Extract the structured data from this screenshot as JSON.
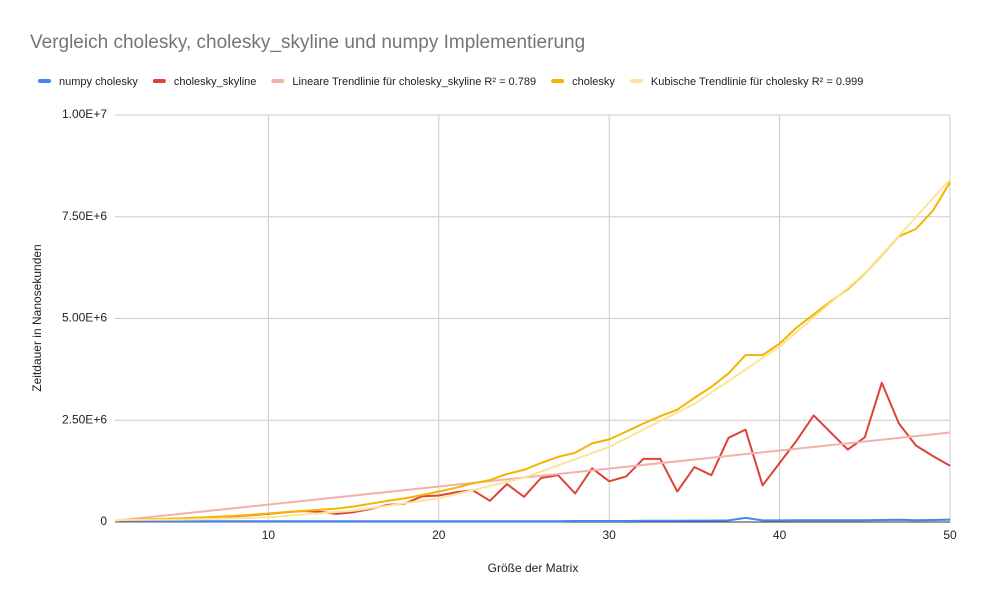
{
  "chart_data": {
    "type": "line",
    "title": "Vergleich cholesky, cholesky_skyline und numpy Implementierung",
    "x_label": "Größe der Matrix",
    "y_label": "Zeitdauer in Nanosekunden",
    "xlim": [
      1,
      50
    ],
    "xticks": [
      10,
      20,
      30,
      40,
      50
    ],
    "ylim": [
      0,
      10000000
    ],
    "yticks": [
      {
        "value": 0,
        "label": "0"
      },
      {
        "value": 2500000,
        "label": "2.50E+6"
      },
      {
        "value": 5000000,
        "label": "5.00E+6"
      },
      {
        "value": 7500000,
        "label": "7.50E+6"
      },
      {
        "value": 10000000,
        "label": "1.00E+7"
      }
    ],
    "grid": true,
    "legend": "top",
    "series": [
      {
        "name": "numpy cholesky",
        "color": "#4285f4",
        "x": [
          1,
          2,
          3,
          4,
          5,
          6,
          7,
          8,
          9,
          10,
          11,
          12,
          13,
          14,
          15,
          16,
          17,
          18,
          19,
          20,
          21,
          22,
          23,
          24,
          25,
          26,
          27,
          28,
          29,
          30,
          31,
          32,
          33,
          34,
          35,
          36,
          37,
          38,
          39,
          40,
          41,
          42,
          43,
          44,
          45,
          46,
          47,
          48,
          49,
          50
        ],
        "values": [
          20000,
          20000,
          20000,
          20000,
          20000,
          20000,
          20000,
          20000,
          20000,
          20000,
          20000,
          20000,
          20000,
          20000,
          20000,
          20000,
          20000,
          20000,
          20000,
          20000,
          20000,
          20000,
          20000,
          20000,
          20000,
          20000,
          20000,
          25000,
          25000,
          25000,
          25000,
          30000,
          30000,
          30000,
          35000,
          35000,
          40000,
          100000,
          40000,
          40000,
          45000,
          45000,
          45000,
          45000,
          45000,
          50000,
          55000,
          45000,
          50000,
          60000
        ]
      },
      {
        "name": "cholesky_skyline",
        "color": "#db4437",
        "x": [
          1,
          2,
          3,
          4,
          5,
          6,
          7,
          8,
          9,
          10,
          11,
          12,
          13,
          14,
          15,
          16,
          17,
          18,
          19,
          20,
          21,
          22,
          23,
          24,
          25,
          26,
          27,
          28,
          29,
          30,
          31,
          32,
          33,
          34,
          35,
          36,
          37,
          38,
          39,
          40,
          41,
          42,
          43,
          44,
          45,
          46,
          47,
          48,
          49,
          50
        ],
        "values": [
          30000,
          40000,
          50000,
          60000,
          80000,
          100000,
          120000,
          140000,
          170000,
          200000,
          240000,
          270000,
          250000,
          200000,
          240000,
          320000,
          420000,
          450000,
          630000,
          650000,
          730000,
          780000,
          520000,
          930000,
          620000,
          1080000,
          1150000,
          700000,
          1320000,
          1000000,
          1120000,
          1550000,
          1550000,
          750000,
          1350000,
          1150000,
          2070000,
          2270000,
          900000,
          1450000,
          2000000,
          2620000,
          2200000,
          1780000,
          2080000,
          3420000,
          2420000,
          1880000,
          1620000,
          1380000
        ]
      },
      {
        "name": "Lineare Trendlinie für cholesky_skyline R² = 0.789",
        "color": "#f4b0aa",
        "x": [
          1,
          50
        ],
        "values": [
          30000,
          2200000
        ]
      },
      {
        "name": "cholesky",
        "color": "#f4b400",
        "x": [
          1,
          2,
          3,
          4,
          5,
          6,
          7,
          8,
          9,
          10,
          11,
          12,
          13,
          14,
          15,
          16,
          17,
          18,
          19,
          20,
          21,
          22,
          23,
          24,
          25,
          26,
          27,
          28,
          29,
          30,
          31,
          32,
          33,
          34,
          35,
          36,
          37,
          38,
          39,
          40,
          41,
          42,
          43,
          44,
          45,
          46,
          47,
          48,
          49,
          50
        ],
        "values": [
          50000,
          60000,
          70000,
          80000,
          90000,
          110000,
          130000,
          150000,
          180000,
          210000,
          240000,
          270000,
          300000,
          330000,
          380000,
          450000,
          520000,
          580000,
          660000,
          750000,
          840000,
          950000,
          1030000,
          1180000,
          1280000,
          1450000,
          1600000,
          1700000,
          1930000,
          2030000,
          2220000,
          2420000,
          2600000,
          2760000,
          3050000,
          3320000,
          3650000,
          4100000,
          4100000,
          4380000,
          4780000,
          5100000,
          5420000,
          5720000,
          6100000,
          6550000,
          7020000,
          7200000,
          7650000,
          8350000
        ]
      },
      {
        "name": "Kubische Trendlinie für cholesky R² = 0.999",
        "color": "#fce49c",
        "x": [
          1,
          5,
          10,
          15,
          20,
          25,
          30,
          35,
          40,
          45,
          50
        ],
        "values": [
          50000,
          58000,
          117000,
          274000,
          582000,
          1089000,
          1846000,
          2901000,
          4306000,
          6110000,
          8413000
        ]
      }
    ]
  }
}
